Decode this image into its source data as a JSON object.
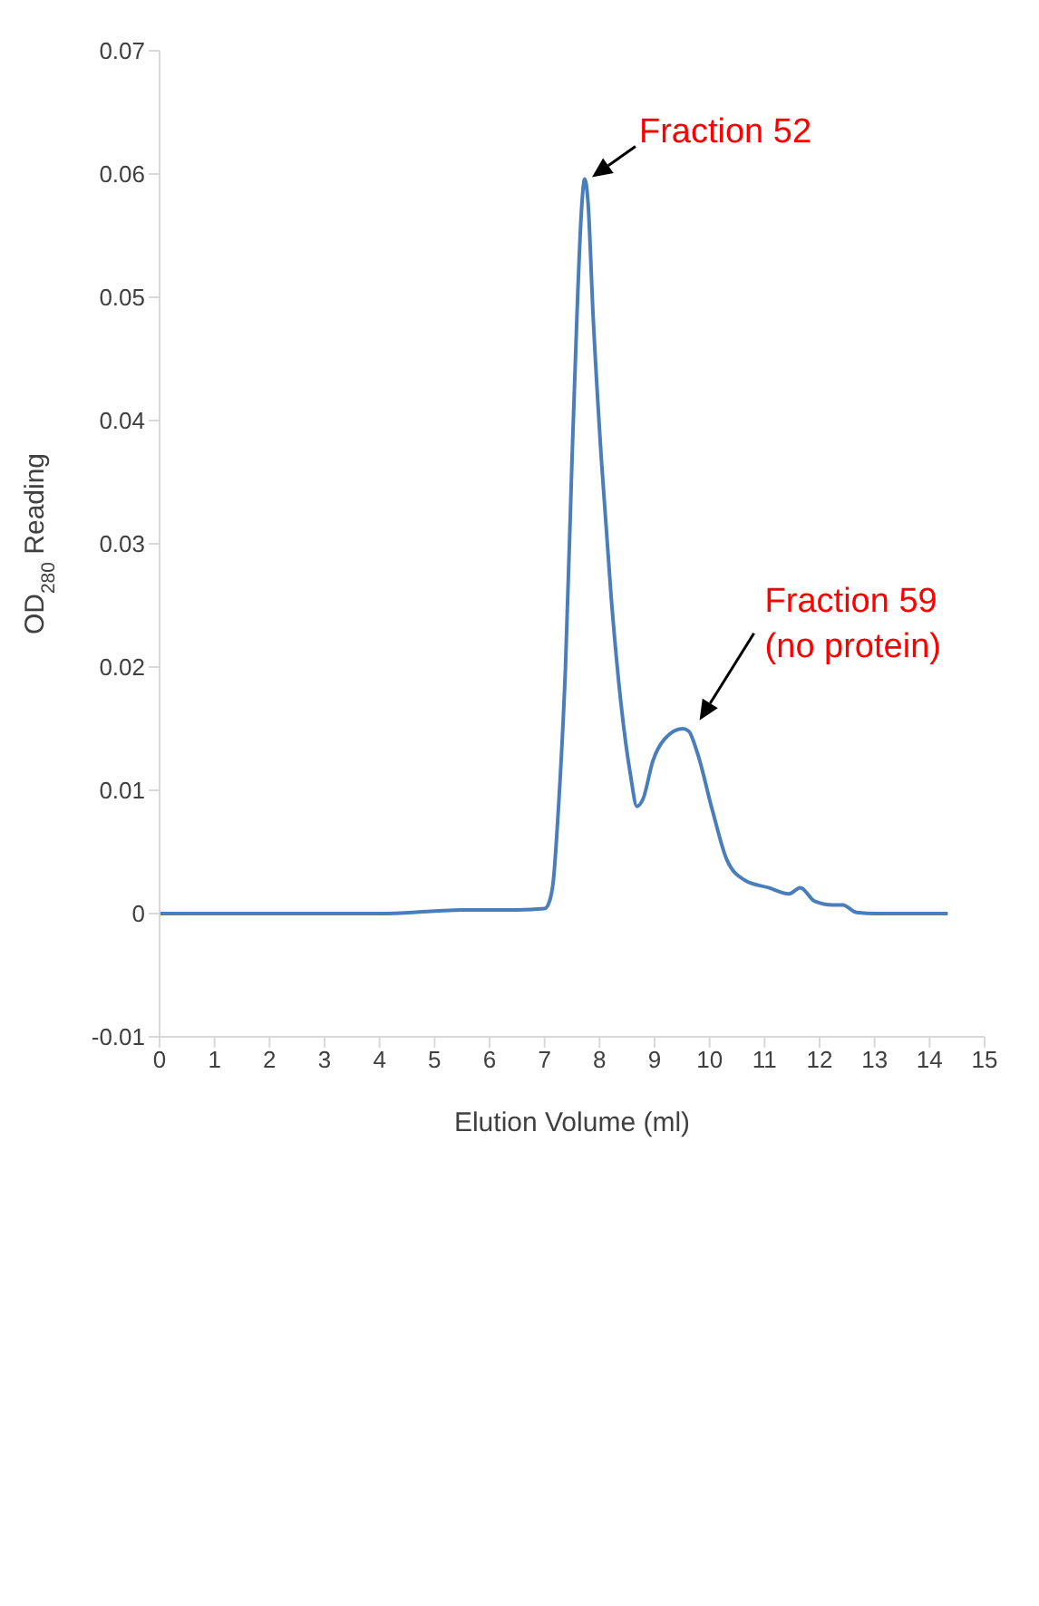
{
  "chart_data": {
    "type": "line",
    "xlabel": "Elution Volume (ml)",
    "ylabel": "OD$_{280}$ Reading",
    "x": [
      0,
      1,
      2,
      3,
      4,
      5,
      5.5,
      6,
      6.5,
      7.0,
      7.09,
      7.16,
      7.25,
      7.38,
      7.5,
      7.59,
      7.67,
      7.73,
      7.79,
      7.88,
      8.03,
      8.21,
      8.39,
      8.56,
      8.68,
      8.79,
      8.97,
      9.19,
      9.51,
      9.62,
      9.78,
      10.05,
      10.31,
      10.64,
      11.07,
      11.44,
      11.65,
      11.91,
      12.24,
      12.42,
      12.67,
      13.04,
      14.33
    ],
    "series": [
      {
        "color": "#4a7ebb",
        "values": [
          0,
          0,
          0,
          0,
          0,
          0.0002,
          0.0003,
          0.0003,
          0.0003,
          0.0004,
          0.001,
          0.0027,
          0.0084,
          0.02,
          0.037,
          0.0487,
          0.057,
          0.0596,
          0.0577,
          0.0487,
          0.037,
          0.0257,
          0.017,
          0.0113,
          0.0087,
          0.0093,
          0.0124,
          0.0142,
          0.015,
          0.0148,
          0.013,
          0.0084,
          0.0044,
          0.0027,
          0.0021,
          0.0016,
          0.0021,
          0.001,
          0.0007,
          0.0007,
          0.0001,
          0,
          0
        ]
      }
    ],
    "xlim": [
      0,
      15
    ],
    "xticks": [
      0,
      1,
      2,
      3,
      4,
      5,
      6,
      7,
      8,
      9,
      10,
      11,
      12,
      13,
      14,
      15
    ],
    "ylim": [
      -0.01,
      0.07
    ],
    "yticks": [
      -0.01,
      0,
      0.01,
      0.02,
      0.03,
      0.04,
      0.05,
      0.06,
      0.07
    ],
    "grid": false,
    "legend": false,
    "annotations": [
      {
        "text": "Fraction 52",
        "x": 7.73,
        "y": 0.0596
      },
      {
        "text": "Fraction 59\n(no protein)",
        "x": 9.62,
        "y": 0.0148
      }
    ]
  }
}
